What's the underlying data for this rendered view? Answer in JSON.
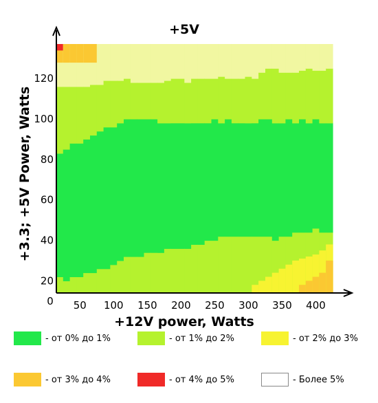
{
  "chart_data": {
    "type": "heatmap",
    "title": "+5V",
    "xlabel": "+12V power, Watts",
    "ylabel": "+3.3; +5V Power, Watts",
    "origin_label": "0",
    "xlim": [
      15,
      425
    ],
    "ylim": [
      14,
      137
    ],
    "x_ticks": [
      50,
      100,
      150,
      200,
      250,
      300,
      350,
      400
    ],
    "y_ticks": [
      20,
      40,
      60,
      80,
      100,
      120
    ],
    "x_grid_start": 15,
    "x_cell_width": 10,
    "zone_colors": {
      "0": "#22e84a",
      "1": "#b5f22e",
      "2": "#f7f331",
      "3": "#fbc832",
      "4": "#f02a28",
      "5": "#ffffff",
      "p": "#f1f7a1"
    },
    "zone_boundaries": {
      "green_lower_top": [
        22,
        20,
        22,
        22,
        24,
        24,
        26,
        26,
        28,
        30,
        32,
        32,
        32,
        34,
        34,
        34,
        36,
        36,
        36,
        36,
        38,
        38,
        40,
        40,
        42,
        42,
        42,
        42,
        42,
        42,
        42,
        42,
        40,
        42,
        42,
        44,
        44,
        44,
        46,
        44,
        44
      ],
      "green_upper_top": [
        83,
        85,
        88,
        88,
        90,
        92,
        94,
        96,
        96,
        98,
        100,
        100,
        100,
        100,
        100,
        98,
        98,
        98,
        98,
        98,
        98,
        98,
        98,
        100,
        98,
        100,
        98,
        98,
        98,
        98,
        100,
        100,
        98,
        98,
        100,
        98,
        100,
        98,
        100,
        98,
        98
      ],
      "lime_top": [
        116,
        116,
        116,
        116,
        116,
        117,
        117,
        119,
        119,
        119,
        120,
        118,
        118,
        118,
        118,
        118,
        119,
        120,
        120,
        118,
        120,
        120,
        120,
        120,
        121,
        120,
        120,
        120,
        121,
        120,
        123,
        125,
        125,
        123,
        123,
        123,
        124,
        125,
        124,
        124,
        125
      ],
      "plot_top": 137
    },
    "hot_zones": {
      "yellow_top": [
        0,
        0,
        0,
        0,
        0,
        0,
        0,
        0,
        0,
        0,
        0,
        0,
        0,
        0,
        0,
        0,
        0,
        0,
        0,
        0,
        0,
        0,
        0,
        0,
        0,
        0,
        0,
        0,
        0,
        18,
        20,
        22,
        24,
        26,
        28,
        30,
        31,
        32,
        33,
        35,
        38
      ],
      "orange_top": [
        0,
        0,
        0,
        0,
        0,
        0,
        0,
        0,
        0,
        0,
        0,
        0,
        0,
        0,
        0,
        0,
        0,
        0,
        0,
        0,
        0,
        0,
        0,
        0,
        0,
        0,
        0,
        0,
        0,
        0,
        0,
        0,
        0,
        0,
        0,
        0,
        18,
        20,
        22,
        24,
        30
      ],
      "corner_orange": {
        "x_max": 75,
        "y_min": 128
      },
      "corner_red": {
        "x_max": 25,
        "y_min": 134
      }
    },
    "legend": [
      {
        "label": "- от 0% до 1%",
        "color": "#22e84a"
      },
      {
        "label": "- от 1% до 2%",
        "color": "#b5f22e"
      },
      {
        "label": "- от 2% до 3%",
        "color": "#f7f331"
      },
      {
        "label": "- от 3% до 4%",
        "color": "#fbc832"
      },
      {
        "label": "- от 4% до 5%",
        "color": "#f02a28"
      },
      {
        "label": "- Более 5%",
        "color": "#ffffff"
      }
    ],
    "legend_placement": "bottom",
    "grid": false
  }
}
